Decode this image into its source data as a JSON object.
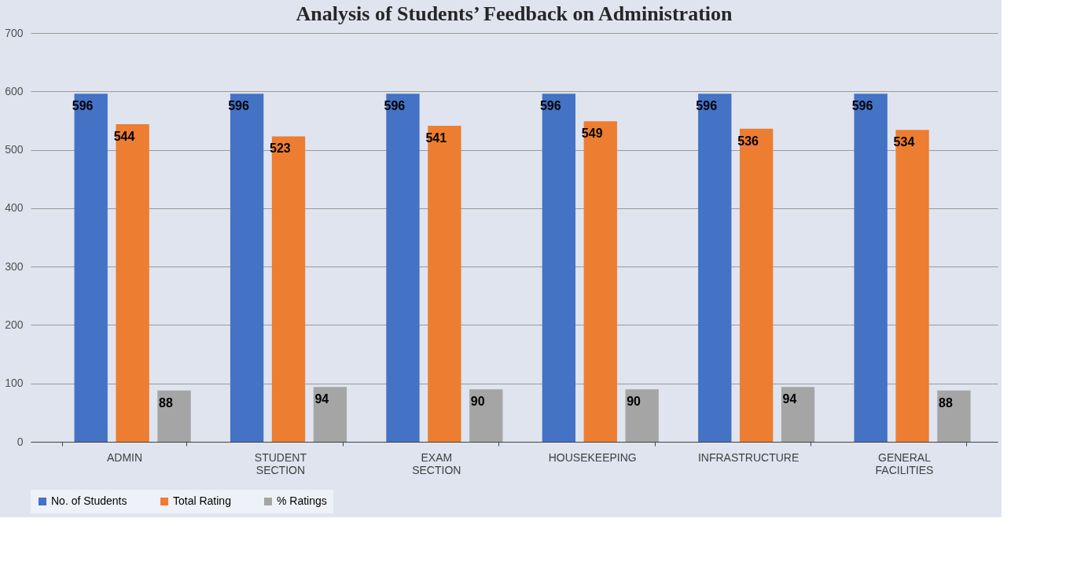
{
  "chart_data": {
    "type": "bar",
    "title": "Analysis  of Students’ Feedback on Administration",
    "categories": [
      "ADMIN",
      "STUDENT SECTION",
      "EXAM SECTION",
      "HOUSEKEEPING",
      "INFRASTRUCTURE",
      "GENERAL FACILITIES"
    ],
    "series": [
      {
        "name": "No. of Students",
        "color": "#4472c4",
        "values": [
          596,
          596,
          596,
          596,
          596,
          596
        ]
      },
      {
        "name": "Total Rating",
        "color": "#ed7d31",
        "values": [
          544,
          523,
          541,
          549,
          536,
          534
        ]
      },
      {
        "name": "% Ratings",
        "color": "#a5a5a5",
        "values": [
          88,
          94,
          90,
          90,
          94,
          88
        ]
      }
    ],
    "ylim": [
      0,
      700
    ],
    "yticks": [
      0,
      100,
      200,
      300,
      400,
      500,
      600,
      700
    ],
    "grid": "y",
    "legend": "bottom",
    "data_labels": true
  }
}
